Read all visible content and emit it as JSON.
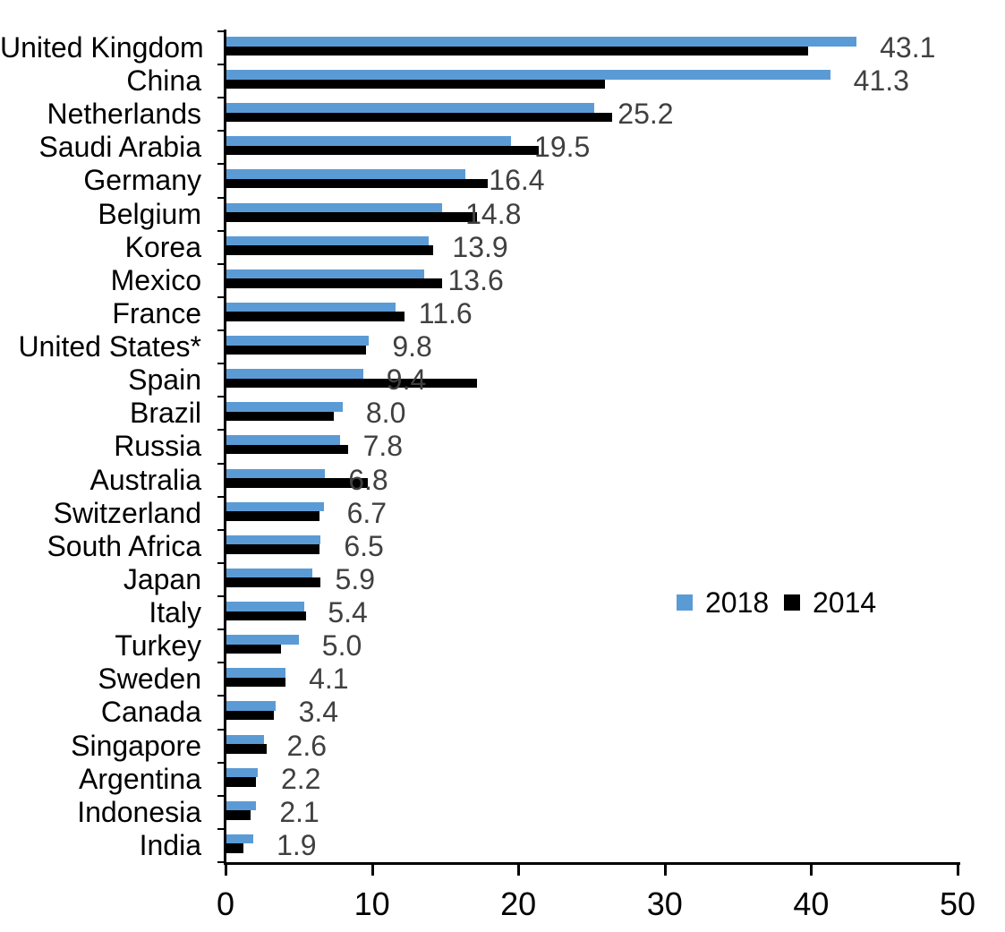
{
  "chart_data": {
    "type": "bar",
    "orientation": "horizontal",
    "title": "",
    "xlabel": "",
    "ylabel": "",
    "xlim": [
      0,
      50
    ],
    "xticks": [
      "0",
      "10",
      "20",
      "30",
      "40",
      "50"
    ],
    "grid": false,
    "legend_position": "middle-right",
    "axis_color": "#000000",
    "background": "#FFFFFF",
    "categories": [
      "United Kingdom",
      "China",
      "Netherlands",
      "Saudi Arabia",
      "Germany",
      "Belgium",
      "Korea",
      "Mexico",
      "France",
      "United States*",
      "Spain",
      "Brazil",
      "Russia",
      "Australia",
      "Switzerland",
      "South Africa",
      "Japan",
      "Italy",
      "Turkey",
      "Sweden",
      "Canada",
      "Singapore",
      "Argentina",
      "Indonesia",
      "India"
    ],
    "series": [
      {
        "name": "2018",
        "color": "#5B9BD5",
        "values": [
          43.1,
          41.3,
          25.2,
          19.5,
          16.4,
          14.8,
          13.9,
          13.6,
          11.6,
          9.8,
          9.4,
          8.0,
          7.8,
          6.8,
          6.7,
          6.5,
          5.9,
          5.4,
          5.0,
          4.1,
          3.4,
          2.6,
          2.2,
          2.1,
          1.9
        ]
      },
      {
        "name": "2014",
        "color": "#000000",
        "values": [
          39.8,
          25.9,
          26.4,
          21.4,
          17.9,
          17.2,
          14.2,
          14.8,
          12.2,
          9.6,
          17.2,
          7.4,
          8.4,
          9.7,
          6.4,
          6.4,
          6.5,
          5.5,
          3.8,
          4.1,
          3.3,
          2.8,
          2.1,
          1.7,
          1.2
        ]
      }
    ],
    "data_labels": {
      "series": "2018",
      "color": "#404040",
      "labels": [
        "43.1",
        "41.3",
        "25.2",
        "19.5",
        "16.4",
        "14.8",
        "13.9",
        "13.6",
        "11.6",
        "9.8",
        "9.4",
        "8.0",
        "7.8",
        "6.8",
        "6.7",
        "6.5",
        "5.9",
        "5.4",
        "5.0",
        "4.1",
        "3.4",
        "2.6",
        "2.2",
        "2.1",
        "1.9"
      ]
    }
  }
}
